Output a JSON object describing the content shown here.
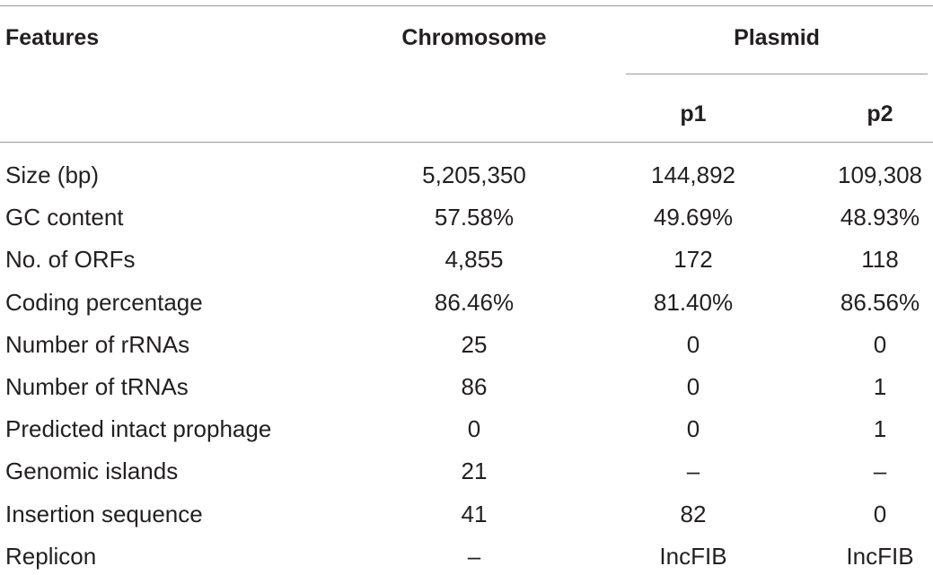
{
  "header": {
    "features": "Features",
    "chromosome": "Chromosome",
    "plasmid": "Plasmid",
    "p1": "p1",
    "p2": "p2"
  },
  "rows": [
    {
      "feature": "Size (bp)",
      "chromosome": "5,205,350",
      "p1": "144,892",
      "p2": "109,308"
    },
    {
      "feature": "GC content",
      "chromosome": "57.58%",
      "p1": "49.69%",
      "p2": "48.93%"
    },
    {
      "feature": "No. of ORFs",
      "chromosome": "4,855",
      "p1": "172",
      "p2": "118"
    },
    {
      "feature": "Coding percentage",
      "chromosome": "86.46%",
      "p1": "81.40%",
      "p2": "86.56%"
    },
    {
      "feature": "Number of rRNAs",
      "chromosome": "25",
      "p1": "0",
      "p2": "0"
    },
    {
      "feature": "Number of tRNAs",
      "chromosome": "86",
      "p1": "0",
      "p2": "1"
    },
    {
      "feature": "Predicted intact prophage",
      "chromosome": "0",
      "p1": "0",
      "p2": "1"
    },
    {
      "feature": "Genomic islands",
      "chromosome": "21",
      "p1": "–",
      "p2": "–"
    },
    {
      "feature": "Insertion sequence",
      "chromosome": "41",
      "p1": "82",
      "p2": "0"
    },
    {
      "feature": "Replicon",
      "chromosome": "–",
      "p1": "IncFIB",
      "p2": "IncFIB"
    }
  ]
}
